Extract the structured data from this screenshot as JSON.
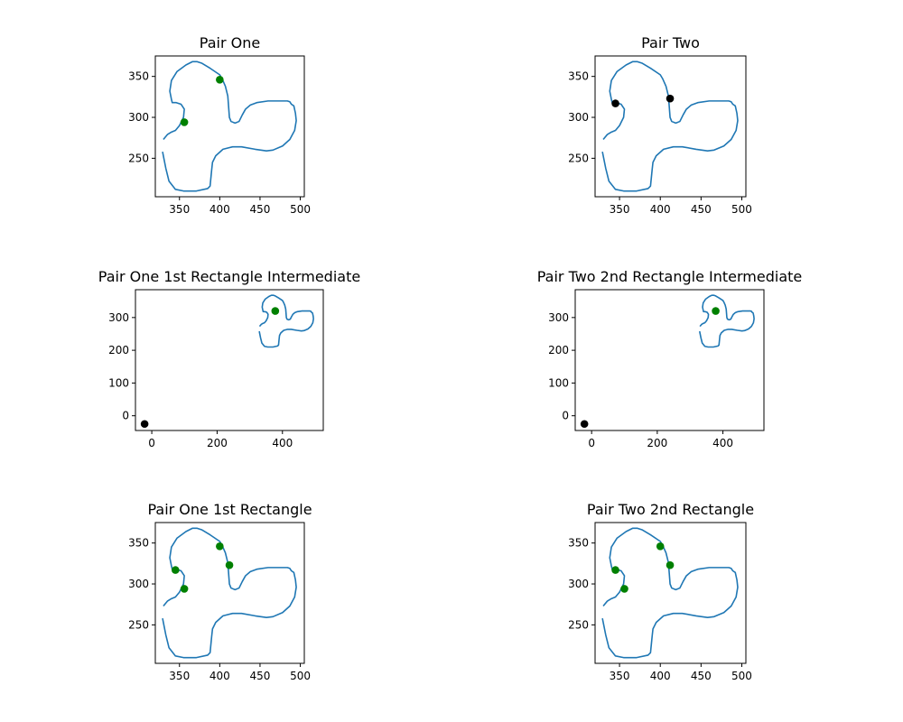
{
  "style": {
    "line_color": "#1f77b4",
    "marker_green": "#008000",
    "marker_black": "#000000"
  },
  "shape_curve": [
    [
      330,
      273
    ],
    [
      335,
      279
    ],
    [
      340,
      282
    ],
    [
      345,
      284
    ],
    [
      350,
      290
    ],
    [
      355,
      300
    ],
    [
      356,
      310
    ],
    [
      352,
      316
    ],
    [
      346,
      318
    ],
    [
      341,
      318
    ],
    [
      340,
      322
    ],
    [
      338,
      332
    ],
    [
      340,
      345
    ],
    [
      347,
      356
    ],
    [
      358,
      364
    ],
    [
      366,
      368
    ],
    [
      372,
      368
    ],
    [
      378,
      366
    ],
    [
      388,
      360
    ],
    [
      400,
      352
    ],
    [
      403,
      347
    ],
    [
      407,
      338
    ],
    [
      410,
      326
    ],
    [
      411,
      313
    ],
    [
      412,
      300
    ],
    [
      414,
      295
    ],
    [
      419,
      293
    ],
    [
      424,
      295
    ],
    [
      428,
      303
    ],
    [
      432,
      310
    ],
    [
      438,
      315
    ],
    [
      446,
      318
    ],
    [
      460,
      320
    ],
    [
      472,
      320
    ],
    [
      484,
      320
    ],
    [
      487,
      319
    ],
    [
      489,
      316
    ],
    [
      492,
      314
    ],
    [
      494,
      305
    ],
    [
      495,
      296
    ],
    [
      493,
      284
    ],
    [
      487,
      273
    ],
    [
      478,
      265
    ],
    [
      466,
      260
    ],
    [
      458,
      259
    ],
    [
      444,
      261
    ],
    [
      427,
      264
    ],
    [
      416,
      264
    ],
    [
      404,
      261
    ],
    [
      395,
      253
    ],
    [
      391,
      245
    ],
    [
      390,
      236
    ],
    [
      389,
      226
    ],
    [
      388,
      216
    ],
    [
      385,
      213
    ],
    [
      371,
      210
    ],
    [
      355,
      210
    ],
    [
      345,
      212
    ],
    [
      337,
      222
    ],
    [
      333,
      238
    ],
    [
      331,
      248
    ],
    [
      329,
      258
    ]
  ],
  "chart_data": [
    {
      "type": "line",
      "title": "Pair One",
      "xlim": [
        320,
        505
      ],
      "ylim": [
        203,
        375
      ],
      "xticks": [
        350,
        400,
        450,
        500
      ],
      "yticks": [
        250,
        300,
        350
      ],
      "points": [
        {
          "x": 400,
          "y": 346,
          "color": "#008000"
        },
        {
          "x": 356,
          "y": 294,
          "color": "#008000"
        }
      ]
    },
    {
      "type": "line",
      "title": "Pair Two",
      "xlim": [
        320,
        505
      ],
      "ylim": [
        203,
        375
      ],
      "xticks": [
        350,
        400,
        450,
        500
      ],
      "yticks": [
        250,
        300,
        350
      ],
      "points": [
        {
          "x": 345,
          "y": 317,
          "color": "#000000"
        },
        {
          "x": 412,
          "y": 323,
          "color": "#000000"
        }
      ]
    },
    {
      "type": "line",
      "title": "Pair One 1st Rectangle Intermediate",
      "xlim": [
        -50,
        525
      ],
      "ylim": [
        -45,
        385
      ],
      "xticks": [
        0,
        200,
        400
      ],
      "yticks": [
        0,
        100,
        200,
        300
      ],
      "points": [
        {
          "x": 378,
          "y": 320,
          "color": "#008000"
        },
        {
          "x": -22,
          "y": -25,
          "color": "#000000"
        }
      ]
    },
    {
      "type": "line",
      "title": "Pair Two 2nd Rectangle Intermediate",
      "xlim": [
        -50,
        525
      ],
      "ylim": [
        -45,
        385
      ],
      "xticks": [
        0,
        200,
        400
      ],
      "yticks": [
        0,
        100,
        200,
        300
      ],
      "points": [
        {
          "x": 378,
          "y": 320,
          "color": "#008000"
        },
        {
          "x": -22,
          "y": -25,
          "color": "#000000"
        }
      ]
    },
    {
      "type": "line",
      "title": "Pair One 1st Rectangle",
      "xlim": [
        320,
        505
      ],
      "ylim": [
        203,
        375
      ],
      "xticks": [
        350,
        400,
        450,
        500
      ],
      "yticks": [
        250,
        300,
        350
      ],
      "points": [
        {
          "x": 400,
          "y": 346,
          "color": "#008000"
        },
        {
          "x": 345,
          "y": 317,
          "color": "#008000"
        },
        {
          "x": 412,
          "y": 323,
          "color": "#008000"
        },
        {
          "x": 356,
          "y": 294,
          "color": "#008000"
        }
      ]
    },
    {
      "type": "line",
      "title": "Pair Two 2nd Rectangle",
      "xlim": [
        320,
        505
      ],
      "ylim": [
        203,
        375
      ],
      "xticks": [
        350,
        400,
        450,
        500
      ],
      "yticks": [
        250,
        300,
        350
      ],
      "points": [
        {
          "x": 400,
          "y": 346,
          "color": "#008000"
        },
        {
          "x": 345,
          "y": 317,
          "color": "#008000"
        },
        {
          "x": 412,
          "y": 323,
          "color": "#008000"
        },
        {
          "x": 356,
          "y": 294,
          "color": "#008000"
        }
      ]
    }
  ]
}
